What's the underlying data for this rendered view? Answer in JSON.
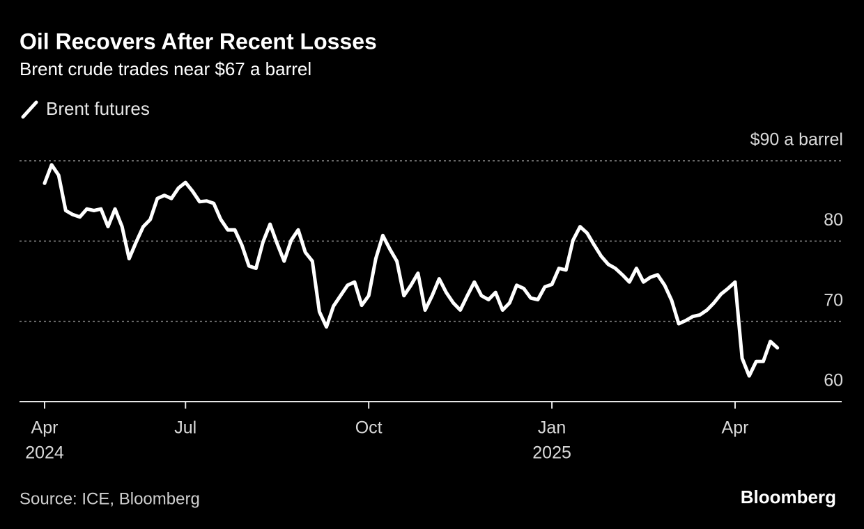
{
  "chart_data": {
    "type": "line",
    "title": "Oil Recovers After Recent Losses",
    "subtitle": "Brent crude trades near $67 a barrel",
    "source": "Source: ICE, Bloomberg",
    "brand": "Bloomberg",
    "categories": [
      "Apr",
      null,
      null,
      null,
      null,
      null,
      null,
      null,
      null,
      null,
      null,
      null,
      null,
      null,
      null,
      null,
      null,
      null,
      null,
      null,
      "Jul",
      null,
      null,
      null,
      null,
      null,
      null,
      null,
      null,
      null,
      null,
      null,
      null,
      null,
      null,
      null,
      null,
      null,
      null,
      null,
      null,
      null,
      null,
      null,
      null,
      null,
      "Oct",
      null,
      null,
      null,
      null,
      null,
      null,
      null,
      null,
      null,
      null,
      null,
      null,
      null,
      null,
      null,
      null,
      null,
      null,
      null,
      null,
      null,
      null,
      null,
      null,
      null,
      "Jan",
      null,
      null,
      null,
      null,
      null,
      null,
      null,
      null,
      null,
      null,
      null,
      null,
      null,
      null,
      null,
      null,
      null,
      null,
      null,
      null,
      null,
      null,
      null,
      null,
      null,
      "Apr",
      null,
      null,
      null,
      null,
      null,
      null
    ],
    "category_years": [
      "2024",
      null,
      null,
      null,
      null,
      null,
      null,
      null,
      null,
      null,
      null,
      null,
      null,
      null,
      null,
      null,
      null,
      null,
      null,
      null,
      null,
      null,
      null,
      null,
      null,
      null,
      null,
      null,
      null,
      null,
      null,
      null,
      null,
      null,
      null,
      null,
      null,
      null,
      null,
      null,
      null,
      null,
      null,
      null,
      null,
      null,
      null,
      null,
      null,
      null,
      null,
      null,
      null,
      null,
      null,
      null,
      null,
      null,
      null,
      null,
      null,
      null,
      null,
      null,
      null,
      null,
      null,
      null,
      null,
      null,
      null,
      null,
      "2025",
      null,
      null,
      null,
      null,
      null,
      null,
      null,
      null,
      null,
      null,
      null,
      null,
      null,
      null,
      null,
      null,
      null,
      null,
      null,
      null,
      null,
      null,
      null,
      null,
      null,
      null,
      null,
      null,
      null,
      null,
      null,
      null
    ],
    "series": [
      {
        "name": "Brent futures",
        "color": "#ffffff",
        "values": [
          87.2,
          89.5,
          88.2,
          83.8,
          83.3,
          83,
          84,
          83.8,
          84,
          81.8,
          84,
          81.8,
          77.8,
          79.9,
          81.8,
          82.7,
          85.3,
          85.7,
          85.3,
          86.6,
          87.3,
          86.2,
          84.9,
          85,
          84.7,
          82.7,
          81.4,
          81.4,
          79.5,
          76.9,
          76.6,
          79.9,
          82.1,
          79.7,
          77.5,
          80.1,
          81.4,
          78.6,
          77.5,
          71.2,
          69.3,
          71.9,
          73.2,
          74.5,
          74.9,
          72,
          73.2,
          77.8,
          80.7,
          79,
          77.5,
          73.2,
          74.5,
          76,
          71.4,
          73.2,
          75.3,
          73.6,
          72.3,
          71.4,
          73.2,
          74.9,
          73.2,
          72.7,
          73.6,
          71.4,
          72.3,
          74.5,
          74.1,
          72.9,
          72.7,
          74.3,
          74.6,
          76.6,
          76.4,
          80.1,
          81.8,
          81,
          79.5,
          78.1,
          77.1,
          76.6,
          75.8,
          74.9,
          76.6,
          74.9,
          75.5,
          75.8,
          74.5,
          72.6,
          69.7,
          70.1,
          70.6,
          70.8,
          71.4,
          72.3,
          73.4,
          74.1,
          74.9,
          65.4,
          63.2,
          65,
          65,
          67.5,
          66.7
        ]
      }
    ],
    "ylim": [
      60,
      90
    ],
    "yticks": [
      60,
      70,
      80,
      {
        "value": 90,
        "label": "$90 a barrel"
      }
    ],
    "grid": true
  }
}
